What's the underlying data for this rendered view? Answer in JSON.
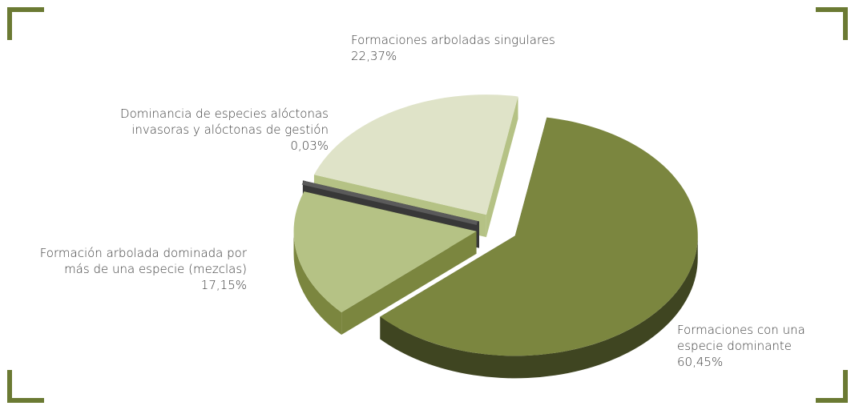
{
  "chart_data": {
    "type": "pie",
    "categories": [
      "Formaciones con una especie dominante",
      "Formación arbolada dominada por más de una especie (mezclas)",
      "Dominancia de especies alóctonas invasoras y alóctonas de gestión",
      "Formaciones arboladas singulares"
    ],
    "values": [
      60.45,
      17.15,
      0.03,
      22.37
    ],
    "value_labels": [
      "60,45%",
      "17,15%",
      "0,03%",
      "22,37%"
    ],
    "colors": [
      "#7b863f",
      "#b5c285",
      "#5a5a5a",
      "#dfe3c8"
    ],
    "side_colors": [
      "#3f4521",
      "#7b863f",
      "#383838",
      "#b5c285"
    ]
  }
}
